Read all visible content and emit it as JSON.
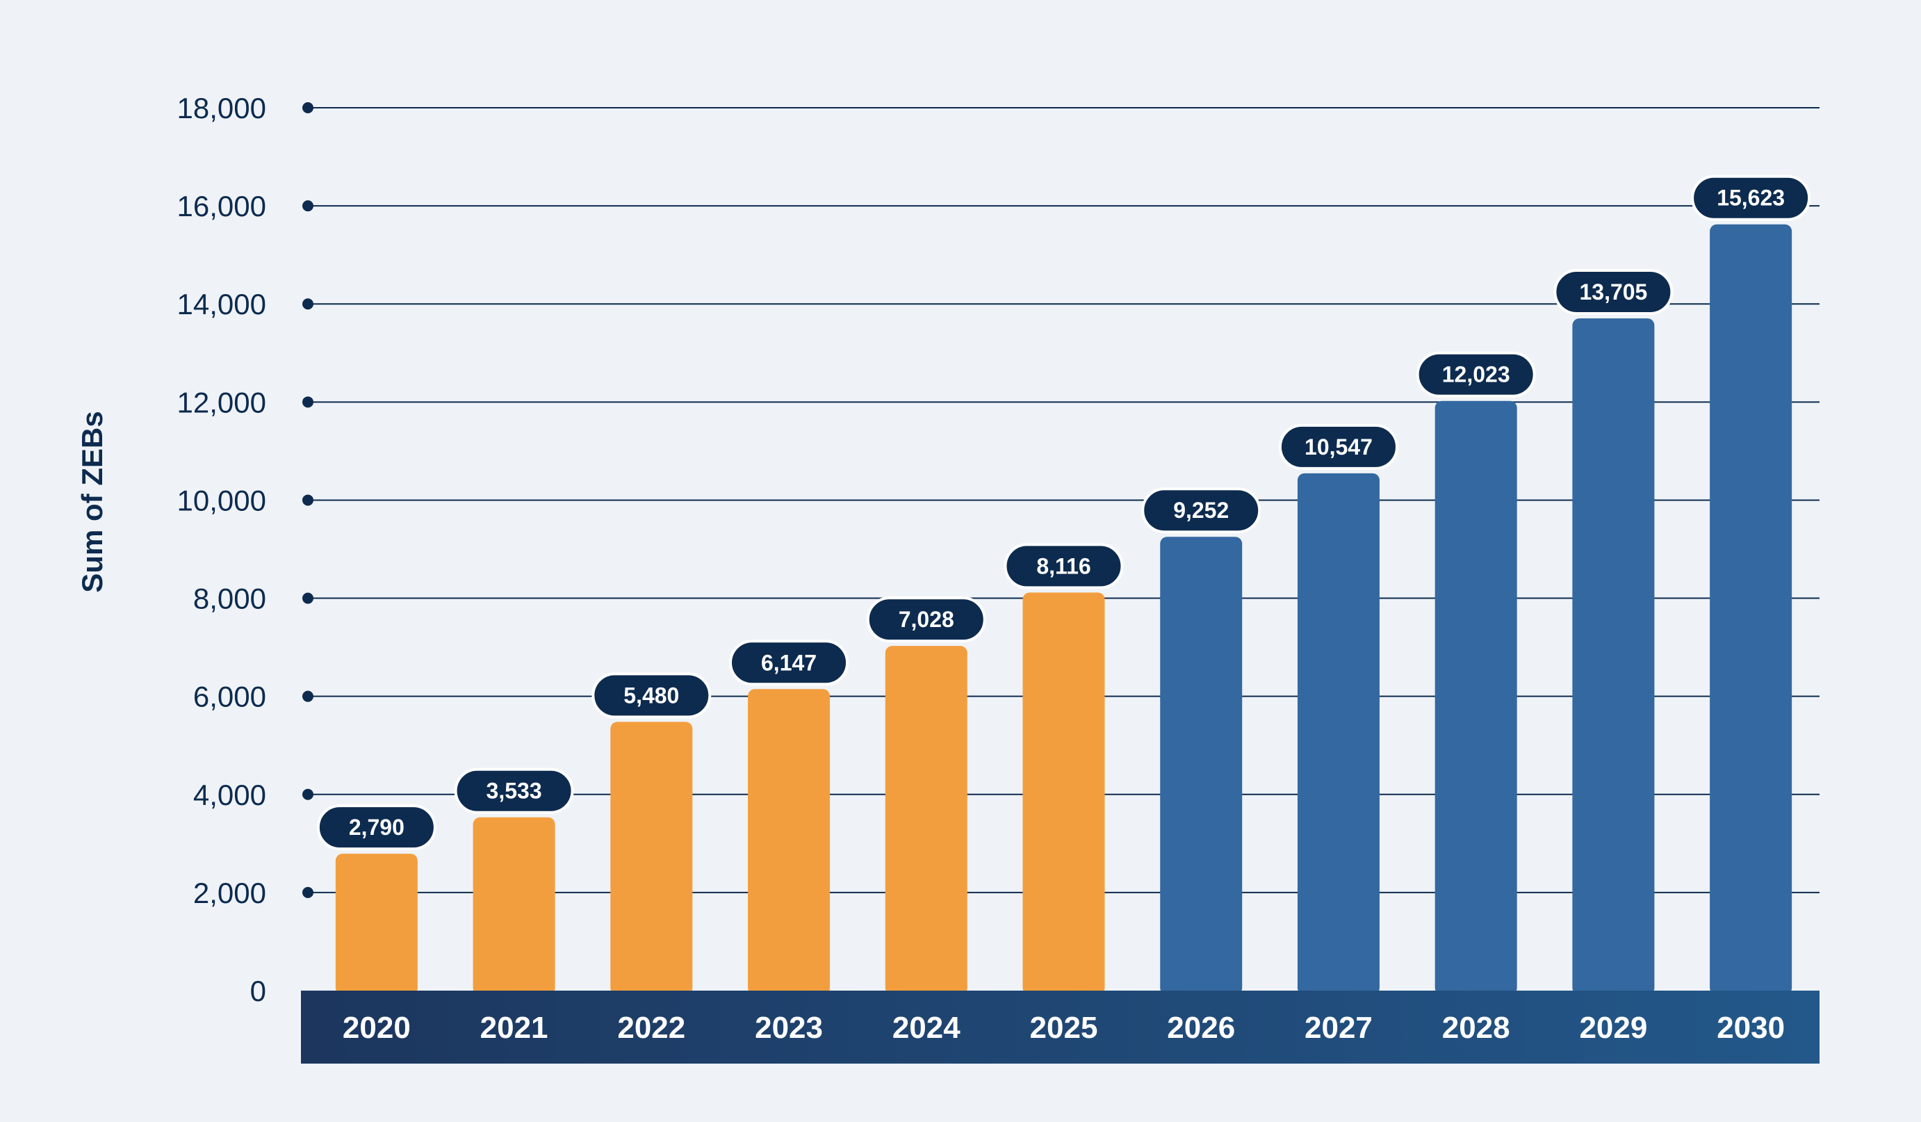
{
  "chart_data": {
    "type": "bar",
    "title": "",
    "xlabel": "",
    "ylabel": "Sum of ZEBs",
    "ylim": [
      0,
      18000
    ],
    "yticks": [
      0,
      2000,
      4000,
      6000,
      8000,
      10000,
      12000,
      14000,
      16000,
      18000
    ],
    "ytick_labels": [
      "0",
      "2,000",
      "4,000",
      "6,000",
      "8,000",
      "10,000",
      "12,000",
      "14,000",
      "16,000",
      "18,000"
    ],
    "grid": true,
    "categories": [
      "2020",
      "2021",
      "2022",
      "2023",
      "2024",
      "2025",
      "2026",
      "2027",
      "2028",
      "2029",
      "2030"
    ],
    "values": [
      2790,
      3533,
      5480,
      6147,
      7028,
      8116,
      9252,
      10547,
      12023,
      13705,
      15623
    ],
    "data_labels": [
      "2,790",
      "3,533",
      "5,480",
      "6,147",
      "7,028",
      "8,116",
      "9,252",
      "10,547",
      "12,023",
      "13,705",
      "15,623"
    ],
    "bar_colors": [
      "#f39e3e",
      "#f39e3e",
      "#f39e3e",
      "#f39e3e",
      "#f39e3e",
      "#f39e3e",
      "#3468a0",
      "#3468a0",
      "#3468a0",
      "#3468a0",
      "#3468a0"
    ],
    "label_bg_color": "#0d2b4f",
    "axis_band_colors": [
      "#1c365e",
      "#23588a"
    ],
    "text_color": "#0d2b4f",
    "grid_color": "#0d2b4f"
  }
}
